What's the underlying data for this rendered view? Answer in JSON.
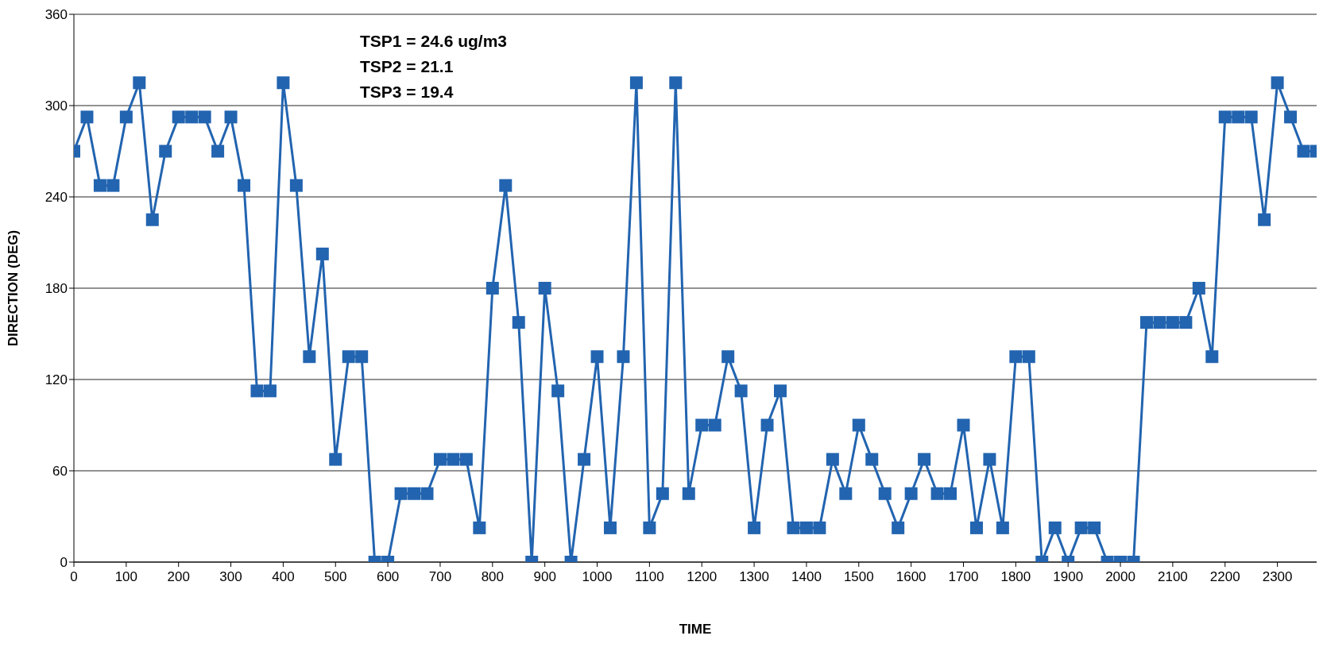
{
  "chart_data": {
    "type": "line",
    "xlabel": "TIME",
    "ylabel": "DIRECTION (DEG)",
    "annotations": [
      "TSP1 = 24.6 ug/m3",
      "TSP2 = 21.1",
      "TSP3 = 19.4"
    ],
    "categories": [
      "0",
      null,
      null,
      null,
      "100",
      null,
      null,
      null,
      "200",
      null,
      null,
      null,
      "300",
      null,
      null,
      null,
      "400",
      null,
      null,
      null,
      "500",
      null,
      null,
      null,
      "600",
      null,
      null,
      null,
      "700",
      null,
      null,
      null,
      "800",
      null,
      null,
      null,
      "900",
      null,
      null,
      null,
      "1000",
      null,
      null,
      null,
      "1100",
      null,
      null,
      null,
      "1200",
      null,
      null,
      null,
      "1300",
      null,
      null,
      null,
      "1400",
      null,
      null,
      null,
      "1500",
      null,
      null,
      null,
      "1600",
      null,
      null,
      null,
      "1700",
      null,
      null,
      null,
      "1800",
      null,
      null,
      null,
      "1900",
      null,
      null,
      null,
      "2000",
      null,
      null,
      null,
      "2100",
      null,
      null,
      null,
      "2200",
      null,
      null,
      null,
      "2300",
      null,
      null,
      null
    ],
    "series": [
      {
        "color": "#2264b0",
        "values": [
          270,
          292.5,
          247.5,
          247.5,
          292.5,
          315,
          225,
          270,
          292.5,
          292.5,
          292.5,
          270,
          292.5,
          247.5,
          112.5,
          112.5,
          315,
          247.5,
          135,
          202.5,
          67.5,
          135,
          135,
          0,
          0,
          45,
          45,
          45,
          67.5,
          67.5,
          67.5,
          22.5,
          180,
          247.5,
          157.5,
          0,
          180,
          112.5,
          0,
          67.5,
          135,
          22.5,
          135,
          315,
          22.5,
          45,
          315,
          45,
          90,
          90,
          135,
          112.5,
          22.5,
          90,
          112.5,
          22.5,
          22.5,
          22.5,
          67.5,
          45,
          90,
          67.5,
          45,
          22.5,
          45,
          67.5,
          45,
          45,
          90,
          22.5,
          67.5,
          22.5,
          135,
          135,
          0,
          22.5,
          0,
          22.5,
          22.5,
          0,
          0,
          0,
          157.5,
          157.5,
          157.5,
          157.5,
          180,
          135,
          292.5,
          292.5,
          292.5,
          225,
          315,
          292.5,
          270,
          270
        ]
      }
    ],
    "ylim": [
      0,
      360
    ],
    "yticks": [
      0,
      60,
      120,
      180,
      240,
      300,
      360
    ],
    "grid": "y",
    "marker": "square",
    "line_style": "solid"
  }
}
